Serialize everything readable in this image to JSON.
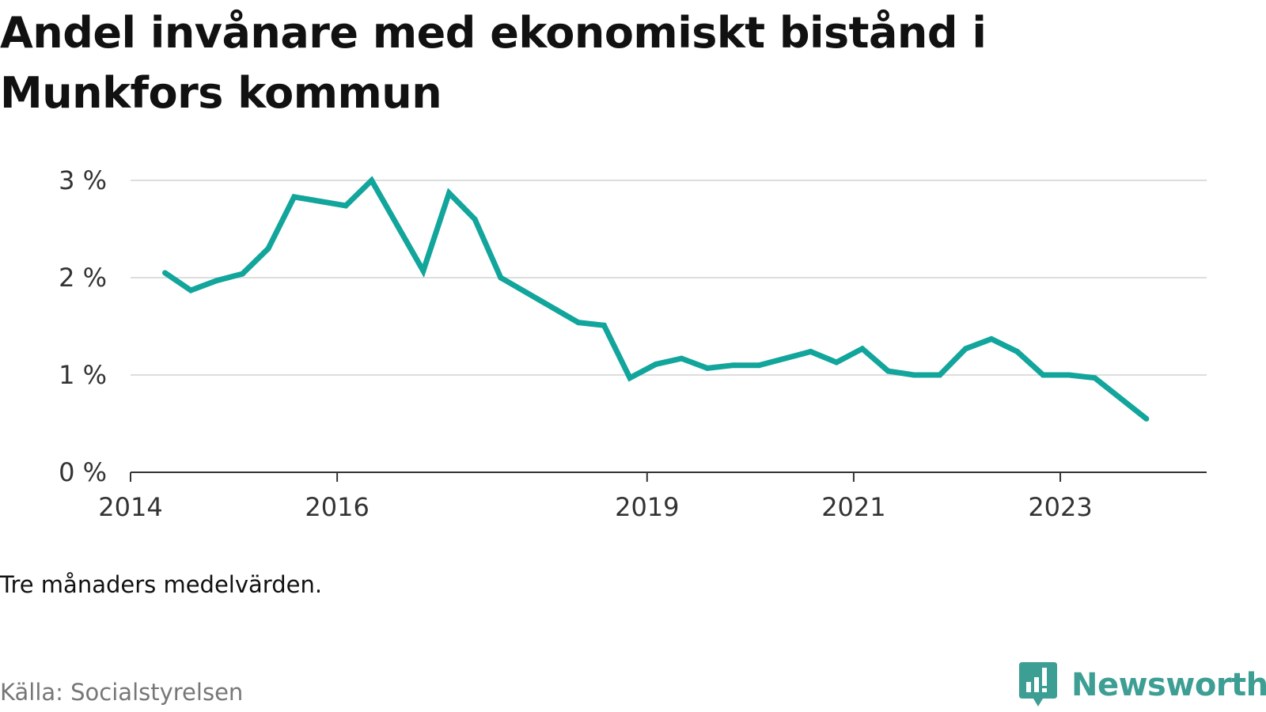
{
  "title": "Andel invånare med ekonomiskt bistånd i Munkfors kommun",
  "note": "Tre månaders medelvärden.",
  "source": "Källa: Socialstyrelsen",
  "brand": {
    "name": "Newsworthy",
    "icon": "newsworthy-logo-icon",
    "color": "#3d9e94"
  },
  "colors": {
    "line": "#12a59b",
    "grid": "#dddddd",
    "axis": "#333333"
  },
  "chart_data": {
    "type": "line",
    "title": "Andel invånare med ekonomiskt bistånd i Munkfors kommun",
    "xlabel": "",
    "ylabel": "",
    "x_axis": {
      "type": "date",
      "ticks": [
        "2014",
        "2016",
        "2019",
        "2021",
        "2023"
      ],
      "range": [
        "2014-01",
        "2024-06"
      ]
    },
    "y_axis": {
      "ticks": [
        "0 %",
        "1 %",
        "2 %",
        "3 %"
      ],
      "range": [
        0,
        3
      ],
      "unit": "%"
    },
    "grid": true,
    "series": [
      {
        "color": "#12a59b",
        "points": [
          {
            "x": "2014-05",
            "y": 2.05
          },
          {
            "x": "2014-08",
            "y": 1.87
          },
          {
            "x": "2014-11",
            "y": 1.97
          },
          {
            "x": "2015-02",
            "y": 2.04
          },
          {
            "x": "2015-05",
            "y": 2.3
          },
          {
            "x": "2015-08",
            "y": 2.83
          },
          {
            "x": "2016-02",
            "y": 2.74
          },
          {
            "x": "2016-05",
            "y": 3.0
          },
          {
            "x": "2016-11",
            "y": 2.07
          },
          {
            "x": "2017-02",
            "y": 2.87
          },
          {
            "x": "2017-05",
            "y": 2.6
          },
          {
            "x": "2017-08",
            "y": 2.0
          },
          {
            "x": "2018-05",
            "y": 1.54
          },
          {
            "x": "2018-08",
            "y": 1.51
          },
          {
            "x": "2018-11",
            "y": 0.97
          },
          {
            "x": "2019-02",
            "y": 1.11
          },
          {
            "x": "2019-05",
            "y": 1.17
          },
          {
            "x": "2019-08",
            "y": 1.07
          },
          {
            "x": "2019-11",
            "y": 1.1
          },
          {
            "x": "2020-02",
            "y": 1.1
          },
          {
            "x": "2020-08",
            "y": 1.24
          },
          {
            "x": "2020-11",
            "y": 1.13
          },
          {
            "x": "2021-02",
            "y": 1.27
          },
          {
            "x": "2021-05",
            "y": 1.04
          },
          {
            "x": "2021-08",
            "y": 1.0
          },
          {
            "x": "2021-11",
            "y": 1.0
          },
          {
            "x": "2022-02",
            "y": 1.27
          },
          {
            "x": "2022-05",
            "y": 1.37
          },
          {
            "x": "2022-08",
            "y": 1.24
          },
          {
            "x": "2022-11",
            "y": 1.0
          },
          {
            "x": "2023-02",
            "y": 1.0
          },
          {
            "x": "2023-05",
            "y": 0.97
          },
          {
            "x": "2023-11",
            "y": 0.55
          }
        ]
      }
    ]
  }
}
